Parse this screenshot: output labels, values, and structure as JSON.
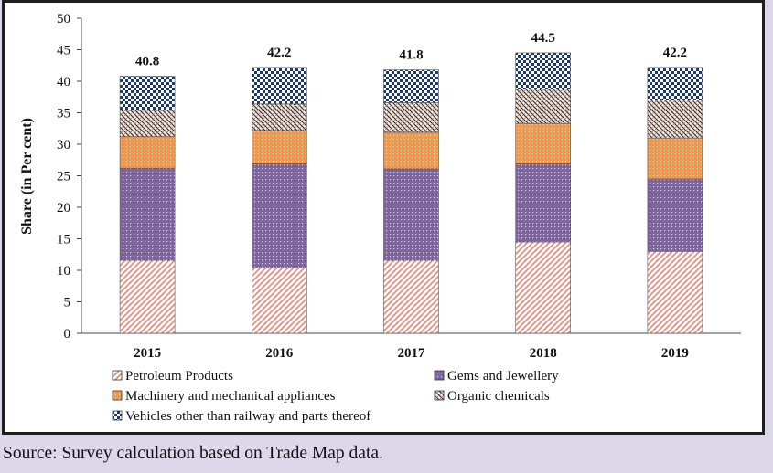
{
  "chart_data": {
    "type": "bar",
    "stacked": true,
    "categories": [
      "2015",
      "2016",
      "2017",
      "2018",
      "2019"
    ],
    "series": [
      {
        "name": "Petroleum Products",
        "values": [
          11.6,
          10.4,
          11.6,
          14.5,
          13.0
        ],
        "color": "#d98a7a",
        "pattern": "diag-lines"
      },
      {
        "name": "Gems and Jewellery",
        "values": [
          14.6,
          16.5,
          14.5,
          12.4,
          11.5
        ],
        "color": "#8064a2",
        "pattern": "dots"
      },
      {
        "name": "Machinery and mechanical appliances",
        "values": [
          5.0,
          5.3,
          5.8,
          6.4,
          6.5
        ],
        "color": "#f79646",
        "pattern": "dots"
      },
      {
        "name": "Organic chemicals",
        "values": [
          4.2,
          4.2,
          4.7,
          5.5,
          6.0
        ],
        "color": "#7a5a4a",
        "pattern": "cross-diag"
      },
      {
        "name": "Vehicles other than railway and parts thereof",
        "values": [
          5.4,
          5.8,
          5.2,
          5.7,
          5.2
        ],
        "color": "#1f3864",
        "pattern": "checker"
      }
    ],
    "totals": [
      "40.8",
      "42.2",
      "41.8",
      "44.5",
      "42.2"
    ],
    "ylabel": "Share (in Per cent)",
    "xlabel": "",
    "ylim": [
      0,
      50
    ],
    "yticks": [
      "0",
      "5",
      "10",
      "15",
      "20",
      "25",
      "30",
      "35",
      "40",
      "45",
      "50"
    ],
    "legend_position": "bottom",
    "grid": false
  },
  "source_note": "Source: Survey calculation based on Trade Map data."
}
